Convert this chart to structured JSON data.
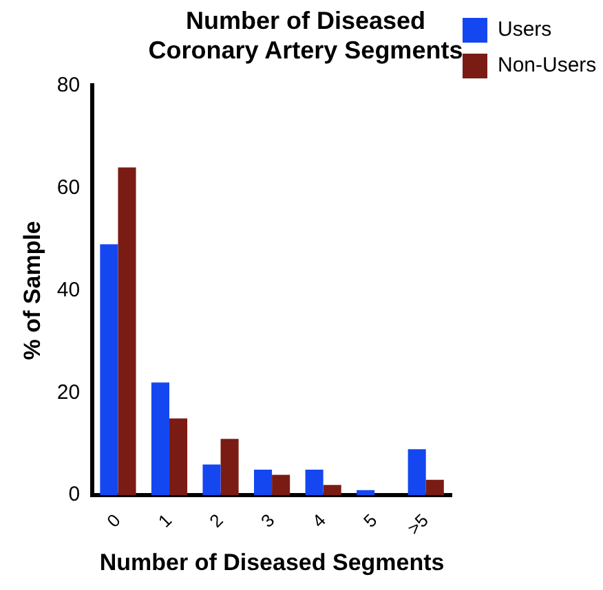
{
  "chart_data": {
    "type": "bar",
    "title": "Number of Diseased Coronary Artery Segments",
    "xlabel": "Number of Diseased Segments",
    "ylabel": "% of Sample",
    "categories": [
      "0",
      "1",
      "2",
      "3",
      "4",
      "5",
      ">5"
    ],
    "series": [
      {
        "name": "Users",
        "color": "#1447f0",
        "values": [
          49,
          22,
          6,
          5,
          5,
          1,
          9
        ]
      },
      {
        "name": "Non-Users",
        "color": "#7a1c14",
        "values": [
          64,
          15,
          11,
          4,
          2,
          0,
          3
        ]
      }
    ],
    "ylim": [
      0,
      80
    ],
    "yticks": [
      0,
      20,
      40,
      60,
      80
    ],
    "grid": false,
    "legend": "top right"
  }
}
